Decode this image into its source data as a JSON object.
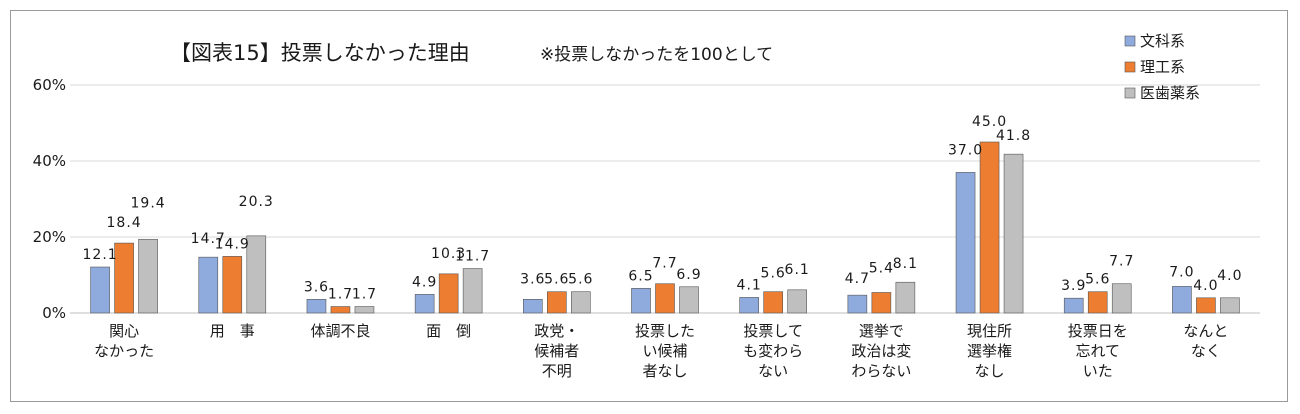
{
  "colors": {
    "文科系": "#8faadc",
    "理工系": "#ed7d31",
    "医歯薬系": "#bfbfbf",
    "grid": "#d9d9d9"
  },
  "chart_data": {
    "type": "bar",
    "title": "【図表15】投票しなかった理由",
    "subtitle": "※投票しなかったを100として",
    "ylim": [
      0,
      60
    ],
    "yticks": [
      0,
      20,
      40,
      60
    ],
    "ytick_labels": [
      "0%",
      "20%",
      "40%",
      "60%"
    ],
    "grid": true,
    "legend_position": "top-right",
    "categories": [
      [
        "関心",
        "なかった"
      ],
      [
        "用　事"
      ],
      [
        "体調不良"
      ],
      [
        "面　倒"
      ],
      [
        "政党・",
        "候補者",
        "不明"
      ],
      [
        "投票した",
        "い候補",
        "者なし"
      ],
      [
        "投票して",
        "も変わら",
        "ない"
      ],
      [
        "選挙で",
        "政治は変",
        "わらない"
      ],
      [
        "現住所",
        "選挙権",
        "なし"
      ],
      [
        "投票日を",
        "忘れて",
        "いた"
      ],
      [
        "なんと",
        "なく"
      ]
    ],
    "series": [
      {
        "name": "文科系",
        "values": [
          12.1,
          14.7,
          3.6,
          4.9,
          3.6,
          6.5,
          4.1,
          4.7,
          37.0,
          3.9,
          7.0
        ],
        "labels": [
          "12.1",
          "14.7",
          "3.6",
          "4.9",
          "3.6",
          "6.5",
          "4.1",
          "4.7",
          "37.0",
          "3.9",
          "7.0"
        ]
      },
      {
        "name": "理工系",
        "values": [
          18.4,
          14.9,
          1.7,
          10.3,
          5.6,
          7.7,
          5.6,
          5.4,
          45.0,
          5.6,
          4.0
        ],
        "labels": [
          "18.4",
          "14.9",
          "1.7",
          "10.3",
          "5.6",
          "7.7",
          "5.6",
          "5.4",
          "45.0",
          "5.6",
          "4.0"
        ]
      },
      {
        "name": "医歯薬系",
        "values": [
          19.4,
          20.3,
          1.7,
          11.7,
          5.6,
          6.9,
          6.1,
          8.1,
          41.8,
          7.7,
          4.0
        ],
        "labels": [
          "19.4",
          "20.3",
          "1.7",
          "11.7",
          "5.6",
          "6.9",
          "6.1",
          "8.1",
          "41.8",
          "7.7",
          "4.0"
        ]
      }
    ]
  }
}
